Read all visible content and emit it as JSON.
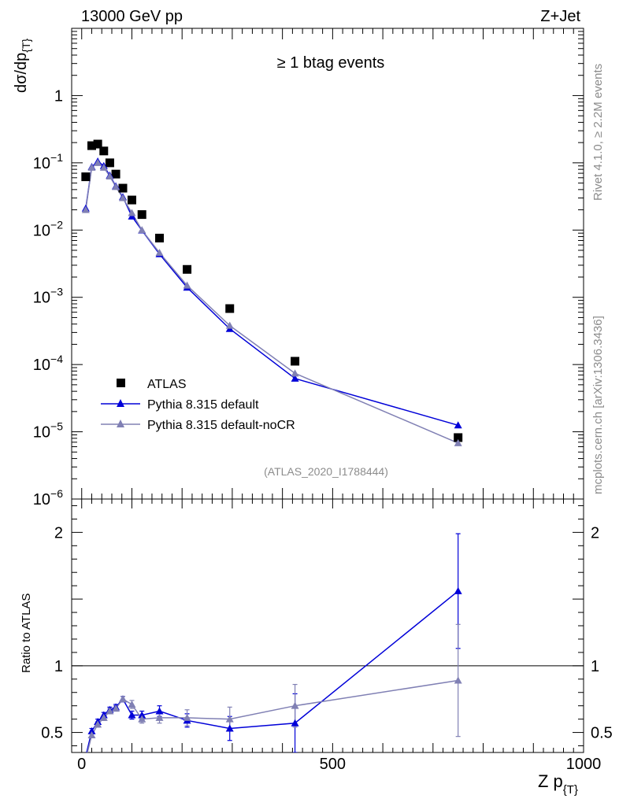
{
  "header": {
    "energy": "13000 GeV pp",
    "process": "Z+Jet"
  },
  "side_labels": {
    "rivet": "Rivet 4.1.0, ≥ 2.2M events",
    "mcplots": "mcplots.cern.ch [arXiv:1306.3436]"
  },
  "chart_data": {
    "type": "scatter",
    "title": "≥ 1 btag events",
    "analysis_id": "(ATLAS_2020_I1788444)",
    "ylabel": "dσ/dp",
    "ylabel_sub": "{T}",
    "xlabel": "Z p",
    "xlabel_sub": "{T}",
    "ratio_ylabel": "Ratio to ATLAS",
    "xlim": [
      -20,
      1000
    ],
    "ylim": [
      1e-06,
      10
    ],
    "ratio_ylim": [
      0.35,
      2.25
    ],
    "y_ticks": [
      {
        "v": 1e-06,
        "base": "10",
        "exp": "−6"
      },
      {
        "v": 1e-05,
        "base": "10",
        "exp": "−5"
      },
      {
        "v": 0.0001,
        "base": "10",
        "exp": "−4"
      },
      {
        "v": 0.001,
        "base": "10",
        "exp": "−3"
      },
      {
        "v": 0.01,
        "base": "10",
        "exp": "−2"
      },
      {
        "v": 0.1,
        "base": "10",
        "exp": "−1"
      },
      {
        "v": 1,
        "base": "1",
        "exp": ""
      }
    ],
    "x_ticks": [
      {
        "v": 0,
        "label": "0"
      },
      {
        "v": 500,
        "label": "500"
      },
      {
        "v": 1000,
        "label": "1000"
      }
    ],
    "ratio_ticks": [
      {
        "v": 0.5,
        "label": "0.5"
      },
      {
        "v": 1,
        "label": "1"
      },
      {
        "v": 2,
        "label": "2"
      }
    ],
    "legend": [
      "ATLAS",
      "Pythia 8.315 default",
      "Pythia 8.315 default-noCR"
    ],
    "series": [
      {
        "name": "ATLAS",
        "color": "#000000",
        "marker": "square",
        "x": [
          8,
          20,
          32,
          44,
          56,
          68,
          82,
          100,
          120,
          155,
          210,
          295,
          425,
          750
        ],
        "y": [
          0.062,
          0.18,
          0.19,
          0.15,
          0.1,
          0.068,
          0.042,
          0.028,
          0.017,
          0.0076,
          0.0026,
          0.00068,
          0.000112,
          8.2e-06
        ]
      },
      {
        "name": "Pythia 8.315 default",
        "color": "#0000d8",
        "marker": "triangle",
        "x": [
          8,
          20,
          32,
          44,
          56,
          68,
          82,
          100,
          120,
          155,
          210,
          295,
          425,
          750
        ],
        "y": [
          0.021,
          0.087,
          0.105,
          0.09,
          0.065,
          0.045,
          0.031,
          0.016,
          0.0099,
          0.0044,
          0.0014,
          0.00034,
          6.2e-05,
          1.25e-05
        ],
        "ratio": [
          0.32,
          0.51,
          0.58,
          0.63,
          0.67,
          0.69,
          0.75,
          0.63,
          0.63,
          0.66,
          0.59,
          0.53,
          0.57,
          1.56
        ],
        "ratio_err": [
          0.02,
          0.02,
          0.02,
          0.02,
          0.02,
          0.02,
          0.02,
          0.03,
          0.03,
          0.04,
          0.05,
          0.09,
          0.22,
          0.43
        ]
      },
      {
        "name": "Pythia 8.315 default-noCR",
        "color": "#8080b4",
        "marker": "triangle",
        "x": [
          8,
          20,
          32,
          44,
          56,
          68,
          82,
          100,
          120,
          155,
          210,
          295,
          425,
          750
        ],
        "y": [
          0.02,
          0.085,
          0.1,
          0.085,
          0.063,
          0.044,
          0.03,
          0.018,
          0.01,
          0.0046,
          0.0015,
          0.00038,
          7.4e-05,
          6.8e-06
        ],
        "ratio": [
          0.3,
          0.48,
          0.56,
          0.61,
          0.66,
          0.68,
          0.75,
          0.71,
          0.6,
          0.61,
          0.61,
          0.6,
          0.7,
          0.89
        ],
        "ratio_err": [
          0.02,
          0.02,
          0.02,
          0.02,
          0.02,
          0.02,
          0.02,
          0.03,
          0.03,
          0.04,
          0.06,
          0.09,
          0.16,
          0.42
        ]
      }
    ]
  }
}
